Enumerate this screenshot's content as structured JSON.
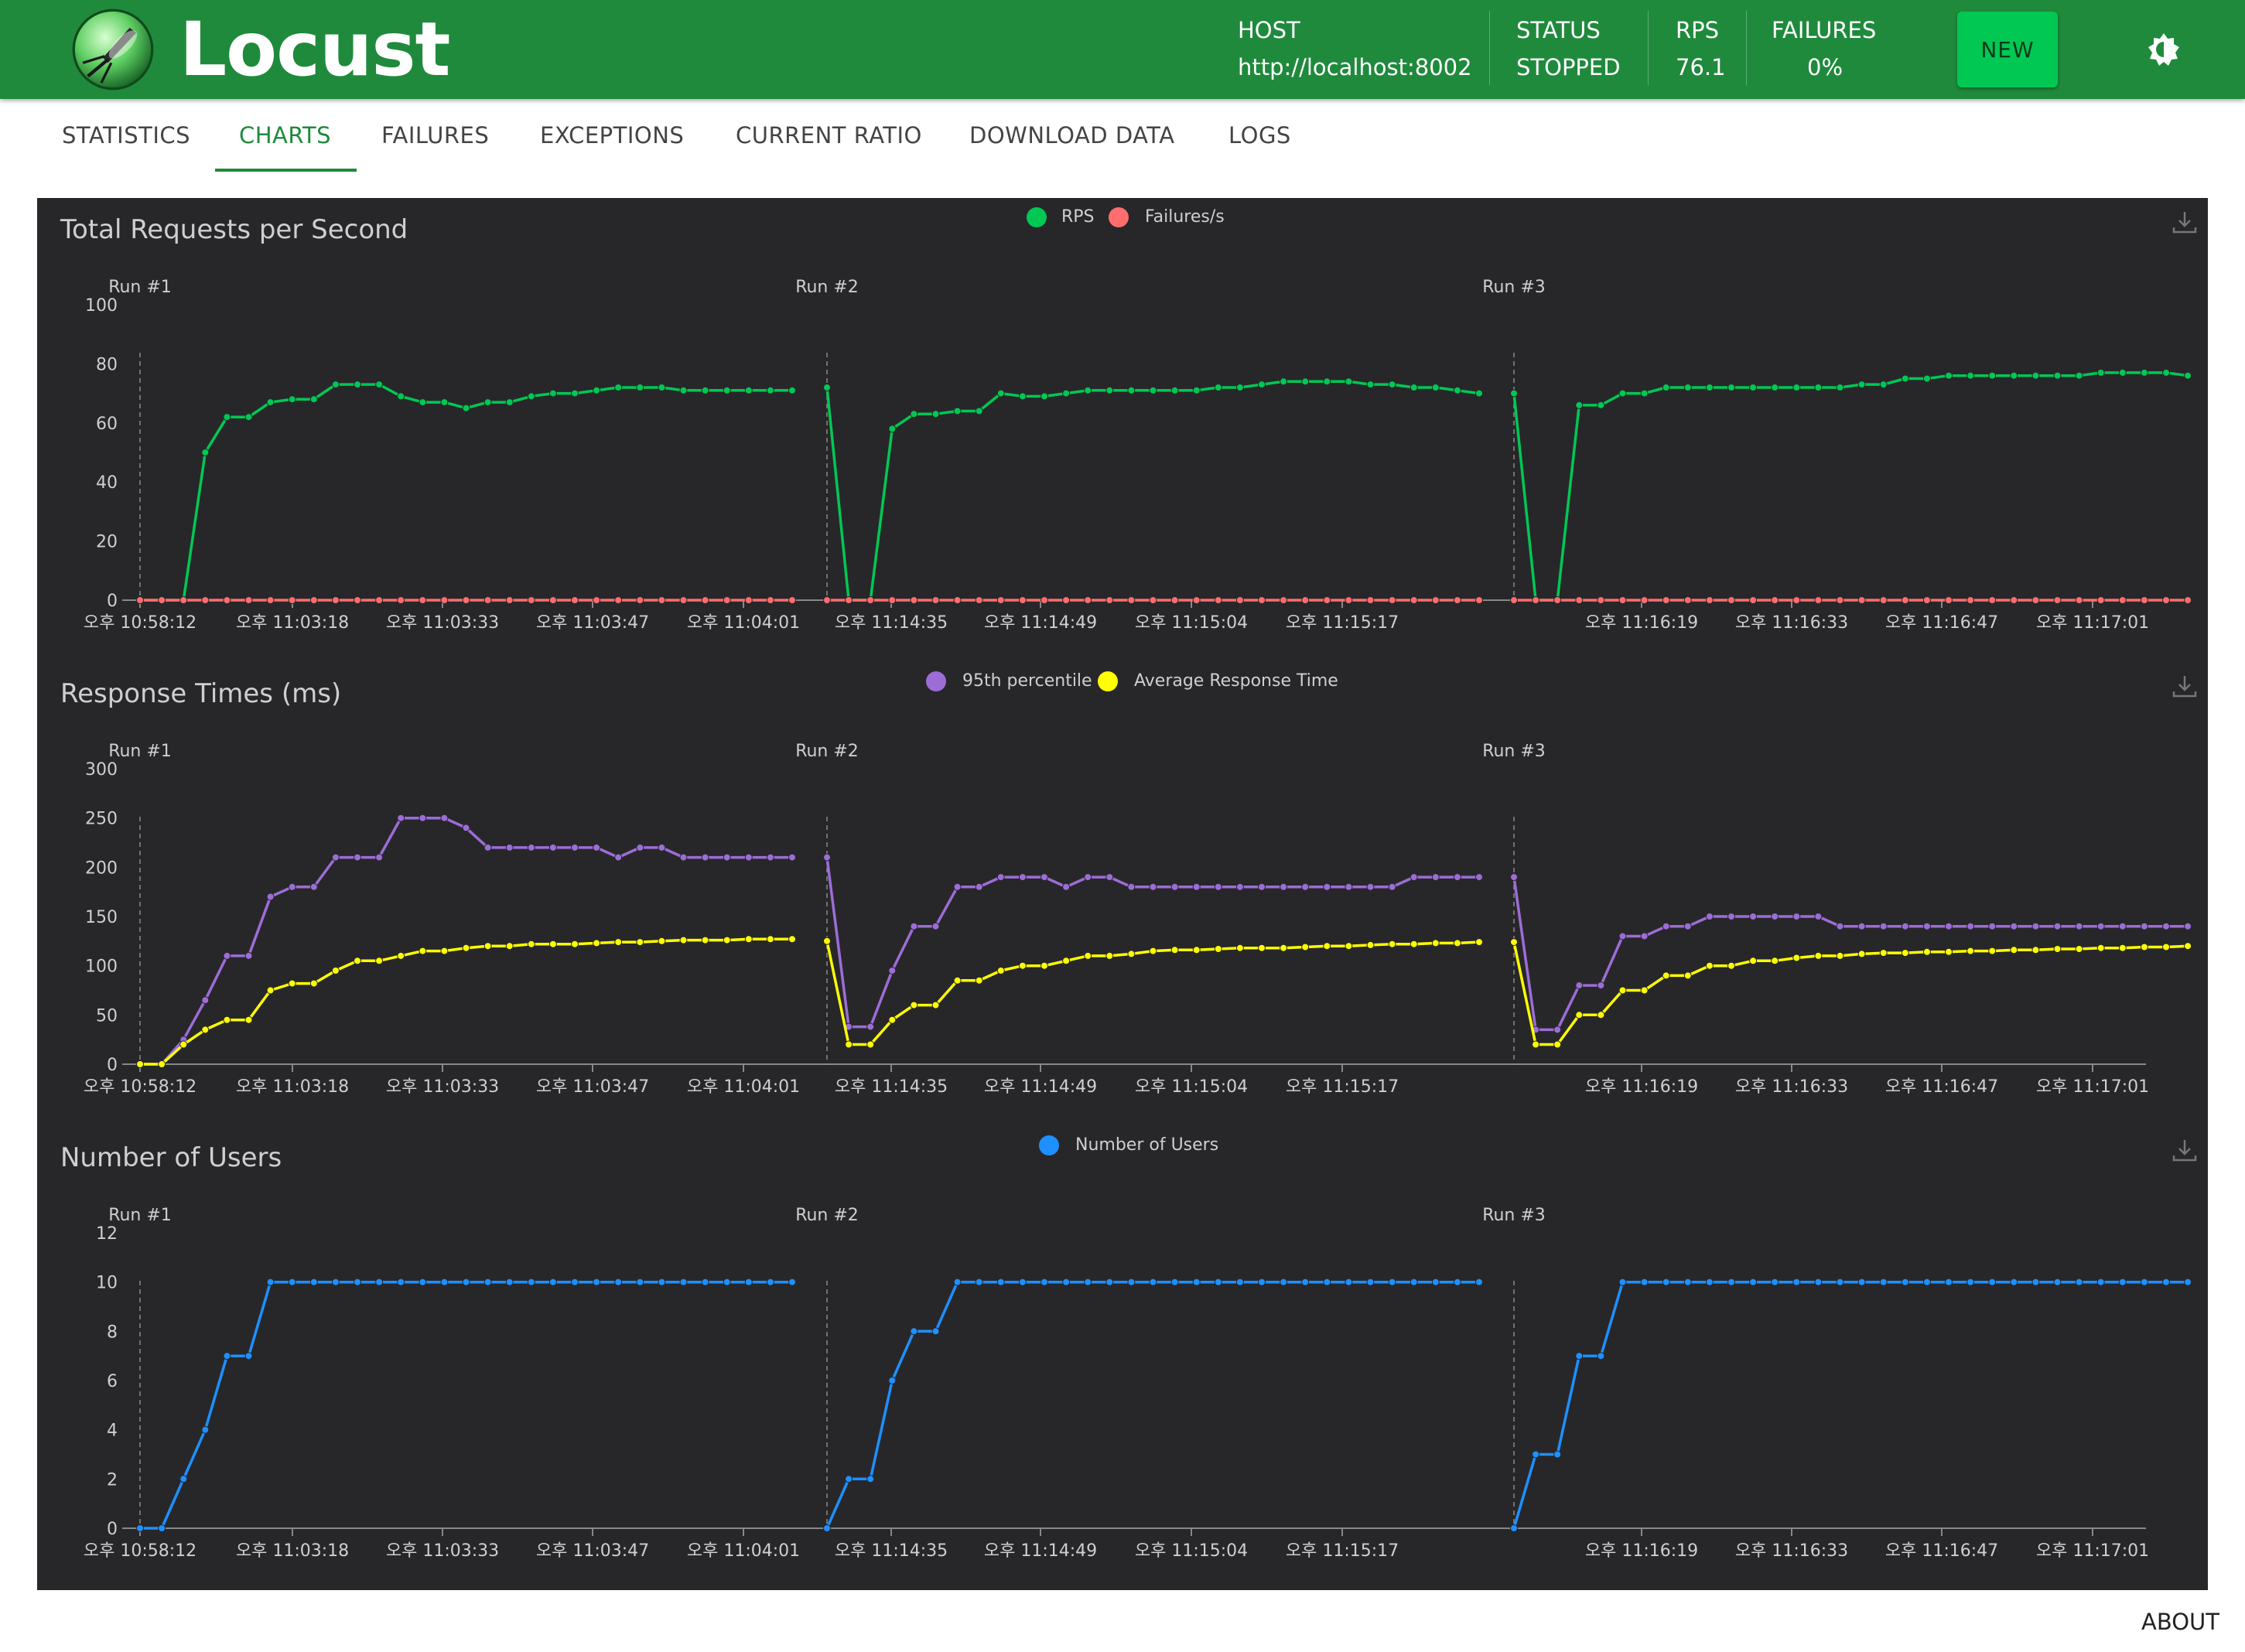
{
  "app": {
    "title": "Locust"
  },
  "header": {
    "host_label": "HOST",
    "host_value": "http://localhost:8002",
    "status_label": "STATUS",
    "status_value": "STOPPED",
    "rps_label": "RPS",
    "rps_value": "76.1",
    "failures_label": "FAILURES",
    "failures_value": "0%",
    "new_button": "NEW"
  },
  "tabs": [
    {
      "label": "STATISTICS",
      "active": false
    },
    {
      "label": "CHARTS",
      "active": true
    },
    {
      "label": "FAILURES",
      "active": false
    },
    {
      "label": "EXCEPTIONS",
      "active": false
    },
    {
      "label": "CURRENT RATIO",
      "active": false
    },
    {
      "label": "DOWNLOAD DATA",
      "active": false
    },
    {
      "label": "LOGS",
      "active": false
    }
  ],
  "footer": {
    "about": "ABOUT"
  },
  "colors": {
    "header_bg": "#1f8a3c",
    "new_button": "#00c853",
    "panel_bg": "#27272a",
    "rps": "#00c853",
    "failures": "#ff6d6d",
    "p95": "#9c6dd6",
    "avg": "#ffff00",
    "users": "#1e90ff"
  },
  "x_tick_labels": [
    "오후 10:58:12",
    "오후 11:03:18",
    "오후 11:03:33",
    "오후 11:03:47",
    "오후 11:04:01",
    "오후 11:14:35",
    "오후 11:14:49",
    "오후 11:15:04",
    "오후 11:15:17",
    "오후 11:16:19",
    "오후 11:16:33",
    "오후 11:16:47",
    "오후 11:17:01"
  ],
  "run_markers": [
    "Run #1",
    "Run #2",
    "Run #3"
  ],
  "chart_data": [
    {
      "type": "line",
      "title": "Total Requests per Second",
      "ylim": [
        0,
        100
      ],
      "yticks": [
        0,
        20,
        40,
        60,
        80,
        100
      ],
      "legend_position": "top-center",
      "series": [
        {
          "name": "RPS",
          "color": "#00c853",
          "runs": [
            [
              0,
              0,
              0,
              50,
              62,
              62,
              67,
              68,
              68,
              73,
              73,
              73,
              69,
              67,
              67,
              65,
              67,
              67,
              69,
              70,
              70,
              71,
              72,
              72,
              72,
              71,
              71,
              71,
              71,
              71,
              71
            ],
            [
              72,
              0,
              0,
              58,
              63,
              63,
              64,
              64,
              70,
              69,
              69,
              70,
              71,
              71,
              71,
              71,
              71,
              71,
              72,
              72,
              73,
              74,
              74,
              74,
              74,
              73,
              73,
              72,
              72,
              71,
              70
            ],
            [
              70,
              0,
              0,
              66,
              66,
              70,
              70,
              72,
              72,
              72,
              72,
              72,
              72,
              72,
              72,
              72,
              73,
              73,
              75,
              75,
              76,
              76,
              76,
              76,
              76,
              76,
              76,
              77,
              77,
              77,
              77,
              76
            ]
          ]
        },
        {
          "name": "Failures/s",
          "color": "#ff6d6d",
          "runs": [
            [
              0,
              0,
              0,
              0,
              0,
              0,
              0,
              0,
              0,
              0,
              0,
              0,
              0,
              0,
              0,
              0,
              0,
              0,
              0,
              0,
              0,
              0,
              0,
              0,
              0,
              0,
              0,
              0,
              0,
              0,
              0
            ],
            [
              0,
              0,
              0,
              0,
              0,
              0,
              0,
              0,
              0,
              0,
              0,
              0,
              0,
              0,
              0,
              0,
              0,
              0,
              0,
              0,
              0,
              0,
              0,
              0,
              0,
              0,
              0,
              0,
              0,
              0,
              0
            ],
            [
              0,
              0,
              0,
              0,
              0,
              0,
              0,
              0,
              0,
              0,
              0,
              0,
              0,
              0,
              0,
              0,
              0,
              0,
              0,
              0,
              0,
              0,
              0,
              0,
              0,
              0,
              0,
              0,
              0,
              0,
              0,
              0
            ]
          ]
        }
      ]
    },
    {
      "type": "line",
      "title": "Response Times (ms)",
      "ylim": [
        0,
        300
      ],
      "yticks": [
        0,
        50,
        100,
        150,
        200,
        250,
        300
      ],
      "legend_position": "top-center",
      "series": [
        {
          "name": "95th percentile",
          "color": "#9c6dd6",
          "runs": [
            [
              0,
              0,
              25,
              65,
              110,
              110,
              170,
              180,
              180,
              210,
              210,
              210,
              250,
              250,
              250,
              240,
              220,
              220,
              220,
              220,
              220,
              220,
              210,
              220,
              220,
              210,
              210,
              210,
              210,
              210,
              210
            ],
            [
              210,
              38,
              38,
              95,
              140,
              140,
              180,
              180,
              190,
              190,
              190,
              180,
              190,
              190,
              180,
              180,
              180,
              180,
              180,
              180,
              180,
              180,
              180,
              180,
              180,
              180,
              180,
              190,
              190,
              190,
              190
            ],
            [
              190,
              35,
              35,
              80,
              80,
              130,
              130,
              140,
              140,
              150,
              150,
              150,
              150,
              150,
              150,
              140,
              140,
              140,
              140,
              140,
              140,
              140,
              140,
              140,
              140,
              140,
              140,
              140,
              140,
              140,
              140,
              140
            ]
          ]
        },
        {
          "name": "Average Response Time",
          "color": "#ffff00",
          "runs": [
            [
              0,
              0,
              20,
              35,
              45,
              45,
              75,
              82,
              82,
              95,
              105,
              105,
              110,
              115,
              115,
              118,
              120,
              120,
              122,
              122,
              122,
              123,
              124,
              124,
              125,
              126,
              126,
              126,
              127,
              127,
              127
            ],
            [
              125,
              20,
              20,
              45,
              60,
              60,
              85,
              85,
              95,
              100,
              100,
              105,
              110,
              110,
              112,
              115,
              116,
              116,
              117,
              118,
              118,
              118,
              119,
              120,
              120,
              121,
              122,
              122,
              123,
              123,
              124
            ],
            [
              124,
              20,
              20,
              50,
              50,
              75,
              75,
              90,
              90,
              100,
              100,
              105,
              105,
              108,
              110,
              110,
              112,
              113,
              113,
              114,
              114,
              115,
              115,
              116,
              116,
              117,
              117,
              118,
              118,
              119,
              119,
              120
            ]
          ]
        }
      ]
    },
    {
      "type": "line",
      "title": "Number of Users",
      "ylim": [
        0,
        12
      ],
      "yticks": [
        0,
        2,
        4,
        6,
        8,
        10,
        12
      ],
      "legend_position": "top-center",
      "series": [
        {
          "name": "Number of Users",
          "color": "#1e90ff",
          "runs": [
            [
              0,
              0,
              2,
              4,
              7,
              7,
              10,
              10,
              10,
              10,
              10,
              10,
              10,
              10,
              10,
              10,
              10,
              10,
              10,
              10,
              10,
              10,
              10,
              10,
              10,
              10,
              10,
              10,
              10,
              10,
              10
            ],
            [
              0,
              2,
              2,
              6,
              8,
              8,
              10,
              10,
              10,
              10,
              10,
              10,
              10,
              10,
              10,
              10,
              10,
              10,
              10,
              10,
              10,
              10,
              10,
              10,
              10,
              10,
              10,
              10,
              10,
              10,
              10
            ],
            [
              0,
              3,
              3,
              7,
              7,
              10,
              10,
              10,
              10,
              10,
              10,
              10,
              10,
              10,
              10,
              10,
              10,
              10,
              10,
              10,
              10,
              10,
              10,
              10,
              10,
              10,
              10,
              10,
              10,
              10,
              10,
              10
            ]
          ]
        }
      ]
    }
  ]
}
